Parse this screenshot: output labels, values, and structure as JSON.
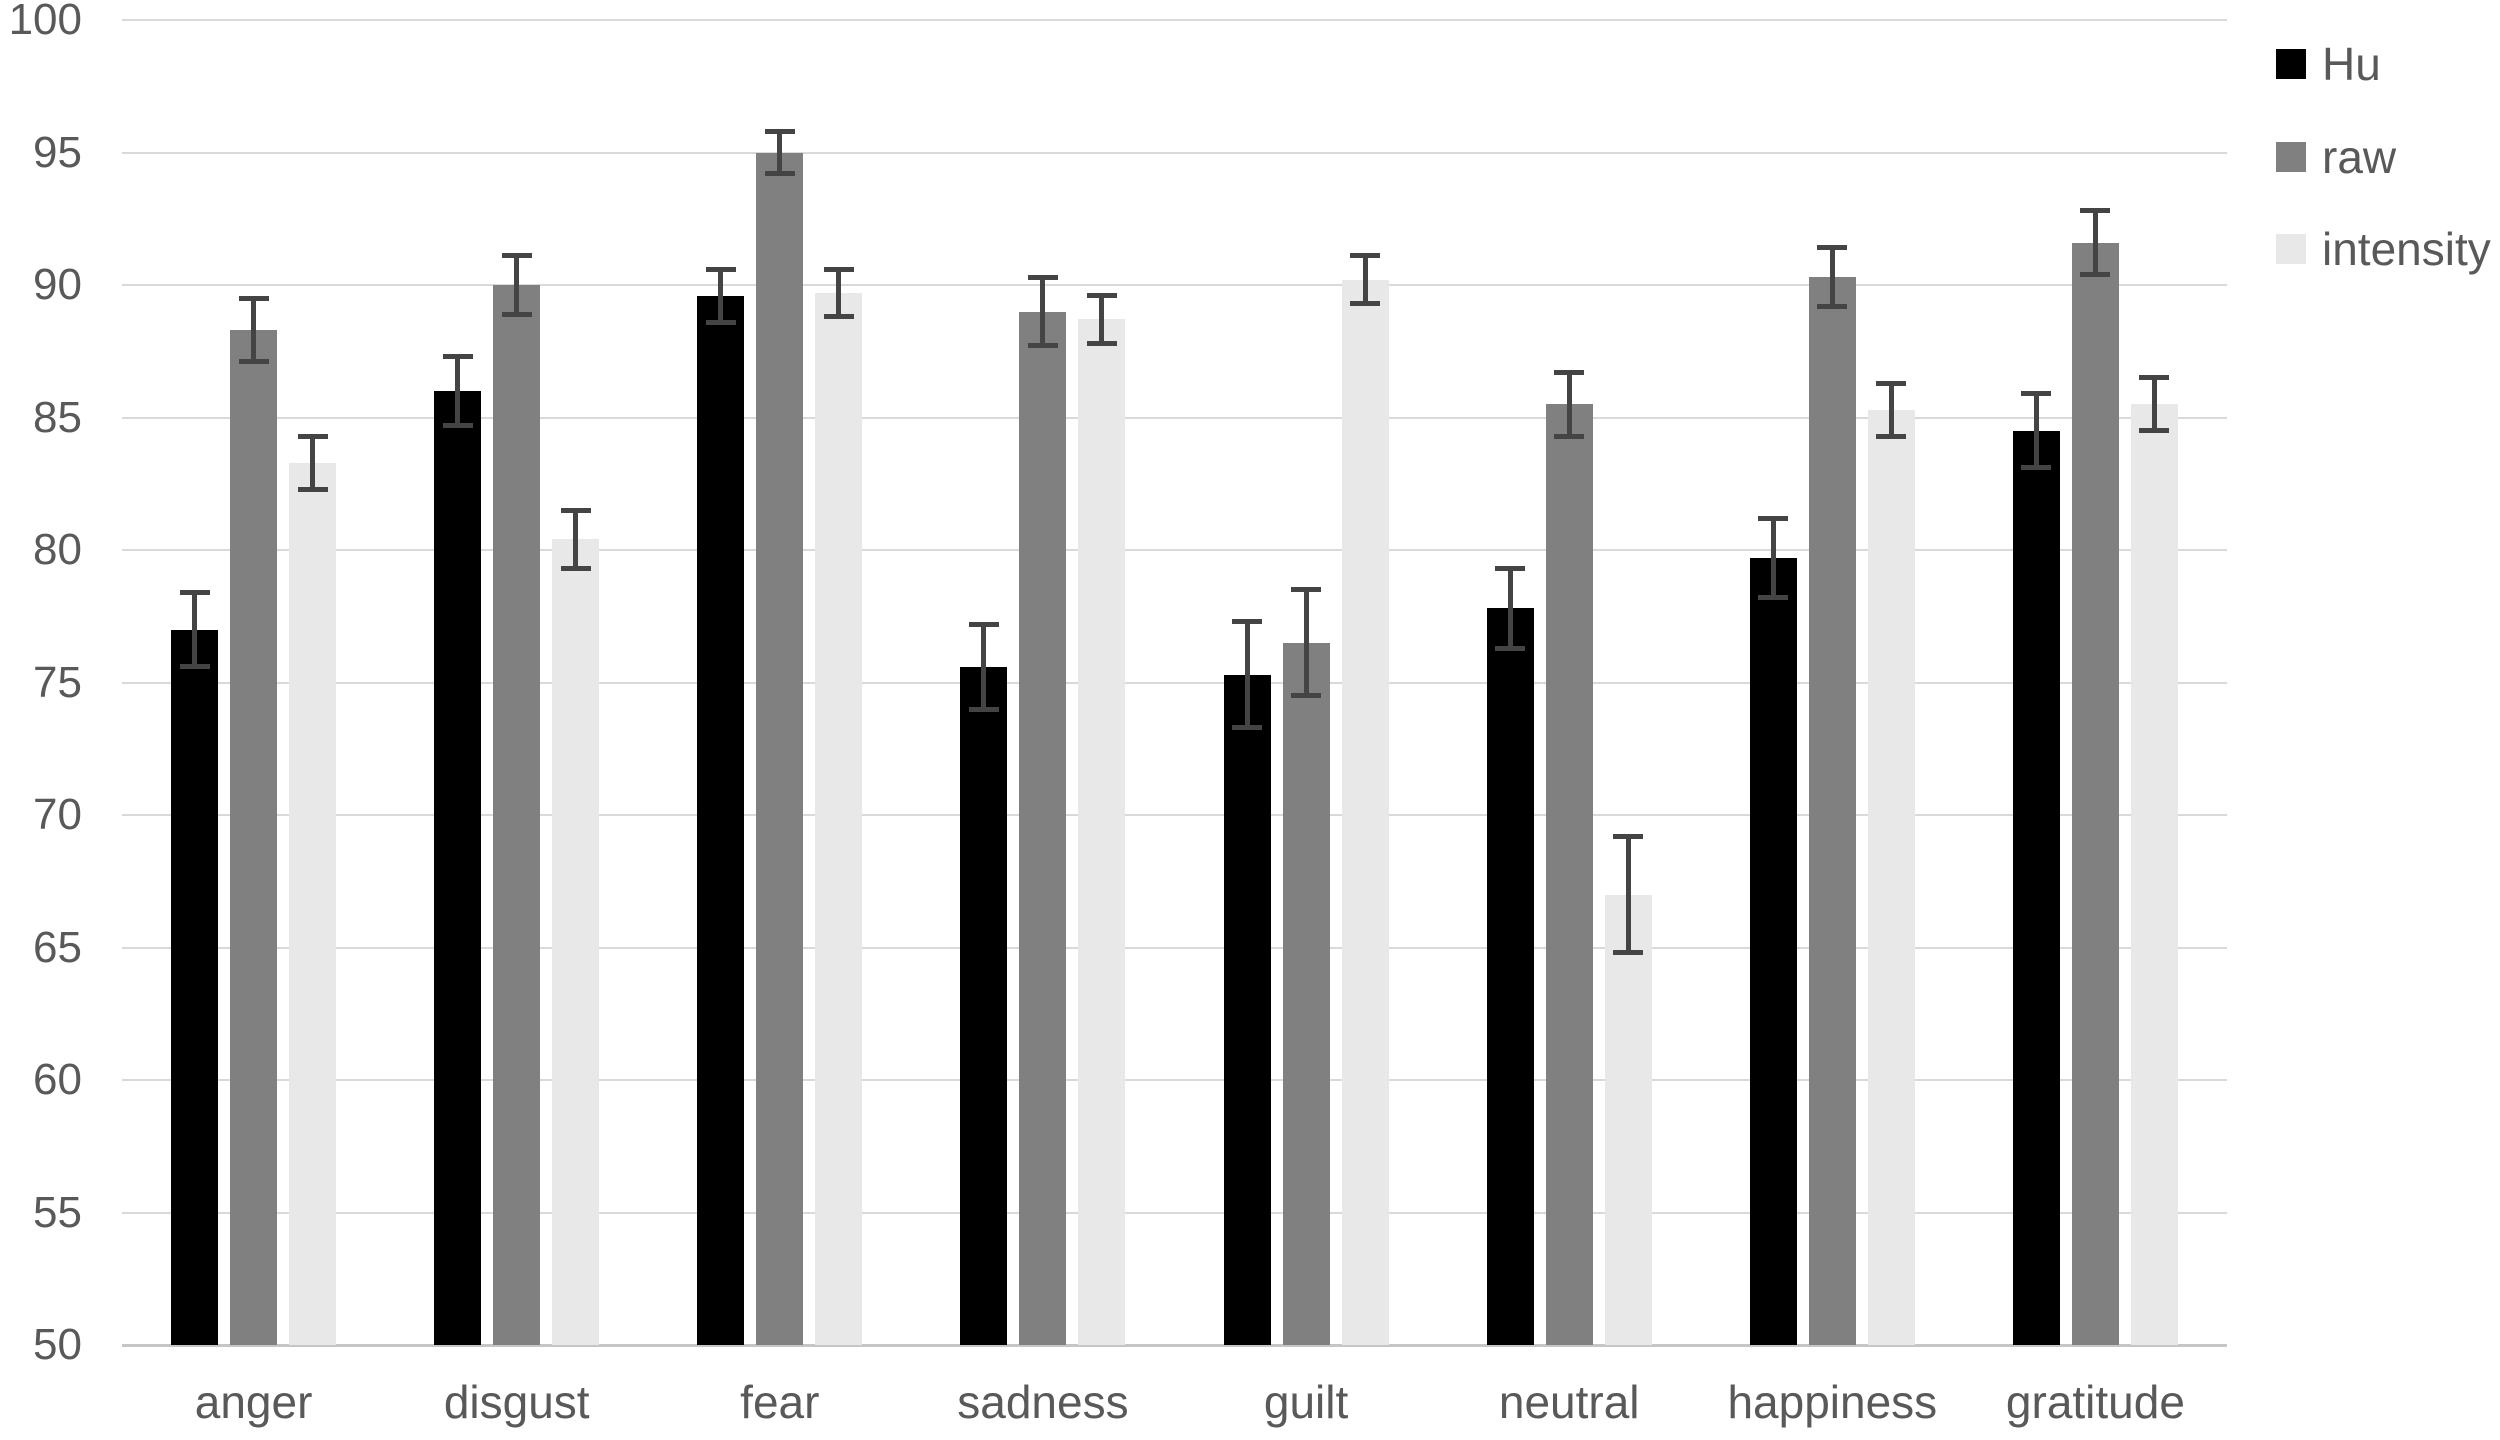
{
  "chart_data": {
    "type": "bar",
    "title": "",
    "xlabel": "",
    "ylabel": "",
    "categories": [
      "anger",
      "disgust",
      "fear",
      "sadness",
      "guilt",
      "neutral",
      "happiness",
      "gratitude"
    ],
    "series": [
      {
        "name": "Hu",
        "color": "#000000",
        "values": [
          77.0,
          86.0,
          89.6,
          75.6,
          75.3,
          77.8,
          79.7,
          84.5
        ],
        "errors": [
          1.4,
          1.3,
          1.0,
          1.6,
          2.0,
          1.5,
          1.5,
          1.4
        ]
      },
      {
        "name": "raw",
        "color": "#808080",
        "values": [
          88.3,
          90.0,
          95.0,
          89.0,
          76.5,
          85.5,
          90.3,
          91.6
        ],
        "errors": [
          1.2,
          1.1,
          0.8,
          1.3,
          2.0,
          1.2,
          1.1,
          1.2
        ]
      },
      {
        "name": "intensity",
        "color": "#e8e8e8",
        "values": [
          83.3,
          80.4,
          89.7,
          88.7,
          90.2,
          67.0,
          85.3,
          85.5
        ],
        "errors": [
          1.0,
          1.1,
          0.9,
          0.9,
          0.9,
          2.2,
          1.0,
          1.0
        ]
      }
    ],
    "ylim": [
      50,
      100
    ],
    "ytick_step": 5,
    "yticks": [
      "50",
      "55",
      "60",
      "65",
      "70",
      "75",
      "80",
      "85",
      "90",
      "95",
      "100"
    ],
    "grid": true,
    "legend_position": "right",
    "error_bars": true
  },
  "styles": {
    "background": "#ffffff",
    "grid_color": "#d9d9d9",
    "axis_color": "#c6c6c6",
    "text_color": "#595959",
    "error_bar_color": "#444444"
  }
}
